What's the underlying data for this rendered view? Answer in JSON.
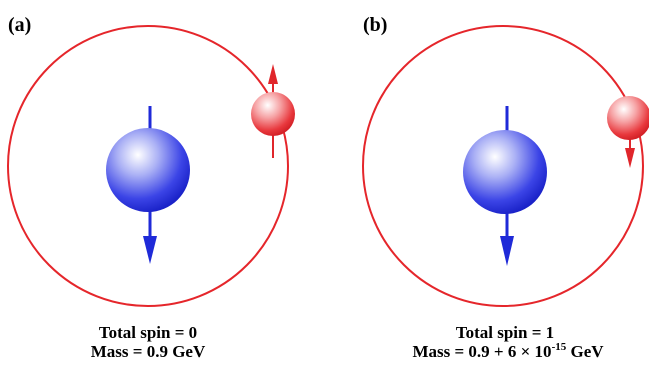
{
  "panels": [
    {
      "label": "(a)",
      "caption_line1": "Total spin = 0",
      "caption_line2": "Mass = 0.9 GeV"
    },
    {
      "label": "(b)",
      "caption_line1": "Total spin = 1",
      "caption_line2_prefix": "Mass = 0.9 + 6 × 10",
      "caption_line2_exponent": "-15",
      "caption_line2_suffix": " GeV"
    }
  ],
  "colors": {
    "orbit": "#e5262b",
    "electron": "#e0262b",
    "proton": "#1f2ad8",
    "text": "#000000"
  }
}
